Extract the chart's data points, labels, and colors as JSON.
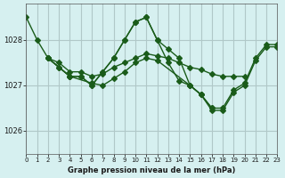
{
  "title": "Graphe pression niveau de la mer (hPa)",
  "bg_color": "#d6f0f0",
  "line_color": "#1a5c1a",
  "grid_color": "#b0c8c8",
  "x_min": 0,
  "x_max": 23,
  "y_min": 1025.5,
  "y_max": 1028.8,
  "y_ticks": [
    1026,
    1027,
    1028
  ],
  "x_ticks": [
    0,
    1,
    2,
    3,
    4,
    5,
    6,
    7,
    8,
    9,
    10,
    11,
    12,
    13,
    14,
    15,
    16,
    17,
    18,
    19,
    20,
    21,
    22,
    23
  ],
  "series": [
    {
      "x": [
        0,
        1,
        2,
        3,
        4,
        5,
        6,
        7,
        8,
        9,
        10,
        11,
        12,
        13,
        14,
        15,
        16,
        17,
        18,
        19,
        20,
        21,
        22,
        23
      ],
      "y": [
        1028.5,
        1028.0,
        1027.6,
        1027.4,
        1027.2,
        1027.2,
        1027.0,
        1027.3,
        1027.6,
        1028.0,
        1028.4,
        1028.5,
        1028.0,
        1027.5,
        1027.1,
        1027.0,
        1026.8,
        1026.5,
        1026.5,
        1026.9,
        1027.05,
        1027.6,
        1027.9,
        1027.9
      ]
    },
    {
      "x": [
        2,
        3,
        4,
        5,
        6,
        7,
        8,
        9,
        10,
        11,
        12,
        13,
        14,
        15,
        16,
        17
      ],
      "y": [
        1027.6,
        1027.4,
        1027.2,
        1027.2,
        1027.0,
        1027.3,
        1027.6,
        1028.0,
        1028.4,
        1028.5,
        1028.0,
        1027.8,
        1027.6,
        1027.0,
        1026.8,
        1026.5
      ]
    },
    {
      "x": [
        2,
        3,
        4,
        5,
        6,
        7,
        8,
        9,
        10,
        11,
        12,
        13,
        14,
        15,
        16,
        17,
        18,
        19,
        20
      ],
      "y": [
        1027.6,
        1027.5,
        1027.3,
        1027.3,
        1027.2,
        1027.25,
        1027.4,
        1027.5,
        1027.6,
        1027.7,
        1027.65,
        1027.6,
        1027.5,
        1027.4,
        1027.35,
        1027.25,
        1027.2,
        1027.2,
        1027.2
      ]
    },
    {
      "x": [
        2,
        4,
        6,
        7,
        8,
        9,
        10,
        11,
        12,
        15,
        16,
        17,
        18,
        19,
        20,
        21,
        22,
        23
      ],
      "y": [
        1027.6,
        1027.2,
        1027.05,
        1027.0,
        1027.15,
        1027.3,
        1027.5,
        1027.6,
        1027.55,
        1027.0,
        1026.8,
        1026.45,
        1026.45,
        1026.85,
        1027.0,
        1027.55,
        1027.85,
        1027.85
      ]
    }
  ]
}
